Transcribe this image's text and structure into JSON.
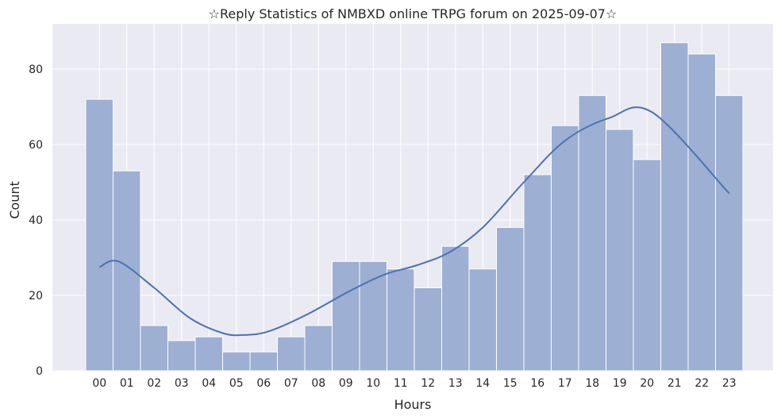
{
  "chart_data": {
    "type": "bar",
    "title": "☆Reply Statistics of NMBXD online TRPG forum on 2025-09-07☆",
    "xlabel": "Hours",
    "ylabel": "Count",
    "categories": [
      "00",
      "01",
      "02",
      "03",
      "04",
      "05",
      "06",
      "07",
      "08",
      "09",
      "10",
      "11",
      "12",
      "13",
      "14",
      "15",
      "16",
      "17",
      "18",
      "19",
      "20",
      "21",
      "22",
      "23"
    ],
    "values": [
      72,
      53,
      12,
      8,
      9,
      5,
      5,
      9,
      12,
      29,
      29,
      27,
      22,
      33,
      27,
      38,
      52,
      65,
      73,
      64,
      56,
      87,
      84,
      73
    ],
    "kde": [
      27.5,
      29,
      22,
      14,
      10,
      9.5,
      10.5,
      15,
      21,
      25.5,
      28,
      31.5,
      38,
      50,
      61,
      67,
      68.5,
      47
    ],
    "kde_x": [
      0,
      0.7,
      2,
      3.3,
      4.5,
      5.3,
      6.2,
      7.6,
      9.1,
      10.4,
      11.6,
      12.8,
      14,
      15.5,
      17,
      18.6,
      20.2,
      23
    ],
    "yticks": [
      0,
      20,
      40,
      60,
      80
    ],
    "ylim": [
      0,
      92
    ],
    "grid": true,
    "colors": {
      "bar": "#9dafd3",
      "bar_edge": "#ffffff",
      "line": "#4c72b0",
      "background": "#eaeaf2",
      "grid": "#ffffff"
    }
  }
}
